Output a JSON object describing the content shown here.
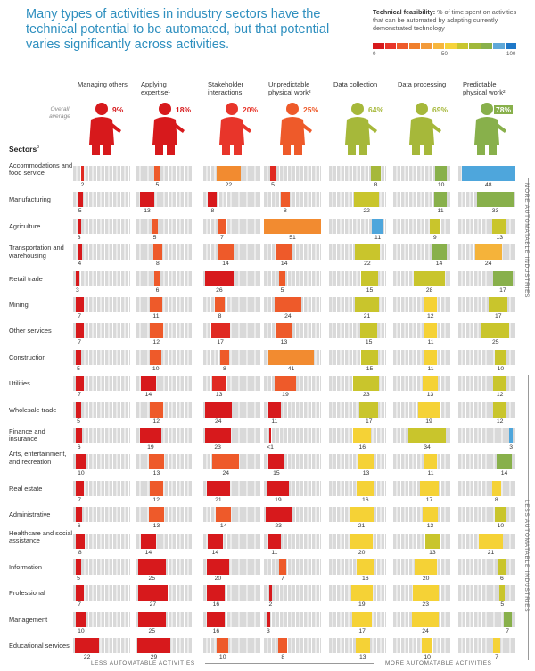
{
  "title": "Many types of activities in industry sectors have the technical potential to be automated, but that potential varies significantly across activities.",
  "legend": {
    "heading": "Technical feasibility:",
    "text": "% of time spent on activities that can be automated by adapting currently demonstrated technology",
    "ticks": [
      "0",
      "50",
      "100"
    ],
    "scale_colors": [
      "#d7191c",
      "#e8352a",
      "#ee5a2a",
      "#f07f2c",
      "#f39a3a",
      "#f7b63c",
      "#f6d33a",
      "#c8c62e",
      "#a0b83a",
      "#88b04b",
      "#5fa8d8",
      "#1f78c8"
    ]
  },
  "overall_label": "Overall average",
  "sectors_heading": "Sectors",
  "sectors_heading_sup": "3",
  "side_top": "MORE AUTOMATABLE INDUSTRIES",
  "side_bottom": "LESS AUTOMATABLE INDUSTRIES",
  "bottom_left": "LESS AUTOMATABLE ACTIVITIES",
  "bottom_right": "MORE AUTOMATABLE ACTIVITIES",
  "columns": [
    {
      "label": "Managing others",
      "average": "9%",
      "color": "#d7191c"
    },
    {
      "label": "Applying expertise¹",
      "average": "18%",
      "color": "#d7191c"
    },
    {
      "label": "Stakeholder interactions",
      "average": "20%",
      "color": "#e8352a"
    },
    {
      "label": "Unpredictable physical work²",
      "average": "25%",
      "color": "#ee5a2a"
    },
    {
      "label": "Data collection",
      "average": "64%",
      "color": "#a6b83a"
    },
    {
      "label": "Data processing",
      "average": "69%",
      "color": "#a6b83a"
    },
    {
      "label": "Predictable physical work²",
      "average": "78%",
      "color": "#88b04b"
    }
  ],
  "chart_data": {
    "type": "heatmap",
    "title": "Many types of activities in industry sectors have the technical potential to be automated, but that potential varies significantly across activities.",
    "columns": [
      "Managing others",
      "Applying expertise",
      "Stakeholder interactions",
      "Unpredictable physical work",
      "Data collection",
      "Data processing",
      "Predictable physical work"
    ],
    "column_averages": [
      9,
      18,
      20,
      25,
      64,
      69,
      78
    ],
    "rows": [
      {
        "sector": "Accommodations and food service",
        "time_share": [
          2,
          5,
          22,
          5,
          8,
          10,
          48
        ],
        "feasibility": [
          15,
          35,
          40,
          12,
          88,
          92,
          96
        ]
      },
      {
        "sector": "Manufacturing",
        "time_share": [
          5,
          13,
          8,
          8,
          22,
          11,
          33
        ],
        "feasibility": [
          8,
          8,
          10,
          35,
          78,
          92,
          92
        ]
      },
      {
        "sector": "Agriculture",
        "time_share": [
          3,
          5,
          7,
          51,
          11,
          9,
          13
        ],
        "feasibility": [
          8,
          30,
          30,
          42,
          95,
          78,
          80
        ]
      },
      {
        "sector": "Transportation and warehousing",
        "time_share": [
          4,
          8,
          14,
          14,
          22,
          14,
          24
        ],
        "feasibility": [
          8,
          35,
          35,
          30,
          80,
          92,
          55
        ]
      },
      {
        "sector": "Retail trade",
        "time_share": [
          3,
          6,
          26,
          5,
          15,
          28,
          17
        ],
        "feasibility": [
          5,
          35,
          5,
          30,
          80,
          80,
          92
        ]
      },
      {
        "sector": "Mining",
        "time_share": [
          7,
          11,
          8,
          24,
          21,
          12,
          17
        ],
        "feasibility": [
          5,
          30,
          25,
          35,
          78,
          70,
          80
        ]
      },
      {
        "sector": "Other services",
        "time_share": [
          7,
          12,
          17,
          13,
          15,
          11,
          25
        ],
        "feasibility": [
          5,
          30,
          20,
          30,
          78,
          70,
          80
        ]
      },
      {
        "sector": "Construction",
        "time_share": [
          5,
          10,
          8,
          41,
          15,
          11,
          10
        ],
        "feasibility": [
          5,
          30,
          35,
          38,
          80,
          70,
          80
        ]
      },
      {
        "sector": "Utilities",
        "time_share": [
          7,
          14,
          13,
          19,
          23,
          13,
          12
        ],
        "feasibility": [
          5,
          10,
          20,
          30,
          78,
          70,
          80
        ]
      },
      {
        "sector": "Wholesale trade",
        "time_share": [
          5,
          12,
          24,
          11,
          17,
          19,
          12
        ],
        "feasibility": [
          5,
          30,
          5,
          10,
          80,
          70,
          80
        ]
      },
      {
        "sector": "Finance and insurance",
        "time_share": [
          6,
          19,
          23,
          1,
          16,
          34,
          3
        ],
        "feasibility": [
          5,
          10,
          5,
          10,
          62,
          78,
          95
        ]
      },
      {
        "sector": "Arts, entertainment, and recreation",
        "time_share": [
          10,
          13,
          24,
          15,
          13,
          11,
          14
        ],
        "feasibility": [
          5,
          30,
          30,
          10,
          70,
          70,
          92
        ]
      },
      {
        "sector": "Real estate",
        "time_share": [
          7,
          12,
          21,
          19,
          16,
          17,
          8
        ],
        "feasibility": [
          5,
          30,
          10,
          10,
          70,
          70,
          70
        ]
      },
      {
        "sector": "Administrative",
        "time_share": [
          6,
          13,
          14,
          23,
          21,
          13,
          10
        ],
        "feasibility": [
          5,
          30,
          30,
          5,
          62,
          70,
          80
        ]
      },
      {
        "sector": "Healthcare and social assistance",
        "time_share": [
          8,
          14,
          14,
          11,
          20,
          13,
          21
        ],
        "feasibility": [
          5,
          10,
          10,
          10,
          62,
          75,
          62
        ]
      },
      {
        "sector": "Information",
        "time_share": [
          5,
          25,
          20,
          7,
          16,
          20,
          6
        ],
        "feasibility": [
          5,
          5,
          10,
          30,
          70,
          62,
          80
        ]
      },
      {
        "sector": "Professional",
        "time_share": [
          7,
          27,
          16,
          2,
          19,
          23,
          5
        ],
        "feasibility": [
          5,
          5,
          10,
          10,
          62,
          62,
          80
        ]
      },
      {
        "sector": "Management",
        "time_share": [
          10,
          25,
          16,
          3,
          17,
          24,
          7
        ],
        "feasibility": [
          5,
          5,
          10,
          5,
          62,
          62,
          92
        ]
      },
      {
        "sector": "Educational services",
        "time_share": [
          22,
          29,
          10,
          8,
          13,
          10,
          7
        ],
        "feasibility": [
          5,
          5,
          30,
          30,
          62,
          62,
          70
        ]
      }
    ],
    "value_labels": [
      [
        "2",
        "5",
        "22",
        "5",
        "8",
        "10",
        "48"
      ],
      [
        "5",
        "13",
        "8",
        "8",
        "22",
        "11",
        "33"
      ],
      [
        "3",
        "5",
        "7",
        "51",
        "11",
        "9",
        "13"
      ],
      [
        "4",
        "8",
        "14",
        "14",
        "22",
        "14",
        "24"
      ],
      [
        "3",
        "6",
        "26",
        "5",
        "15",
        "28",
        "17"
      ],
      [
        "7",
        "11",
        "8",
        "24",
        "21",
        "12",
        "17"
      ],
      [
        "7",
        "12",
        "17",
        "13",
        "15",
        "11",
        "25"
      ],
      [
        "5",
        "10",
        "8",
        "41",
        "15",
        "11",
        "10"
      ],
      [
        "7",
        "14",
        "13",
        "19",
        "23",
        "13",
        "12"
      ],
      [
        "5",
        "12",
        "24",
        "11",
        "17",
        "19",
        "12"
      ],
      [
        "6",
        "19",
        "23",
        "<1",
        "16",
        "34",
        "3"
      ],
      [
        "10",
        "13",
        "24",
        "15",
        "13",
        "11",
        "14"
      ],
      [
        "7",
        "12",
        "21",
        "19",
        "16",
        "17",
        "8"
      ],
      [
        "6",
        "13",
        "14",
        "23",
        "21",
        "13",
        "10"
      ],
      [
        "8",
        "14",
        "14",
        "11",
        "20",
        "13",
        "21"
      ],
      [
        "5",
        "25",
        "20",
        "7",
        "16",
        "20",
        "6"
      ],
      [
        "7",
        "27",
        "16",
        "2",
        "19",
        "23",
        "5"
      ],
      [
        "10",
        "25",
        "16",
        "3",
        "17",
        "24",
        "7"
      ],
      [
        "22",
        "29",
        "10",
        "8",
        "13",
        "10",
        "7"
      ]
    ]
  }
}
